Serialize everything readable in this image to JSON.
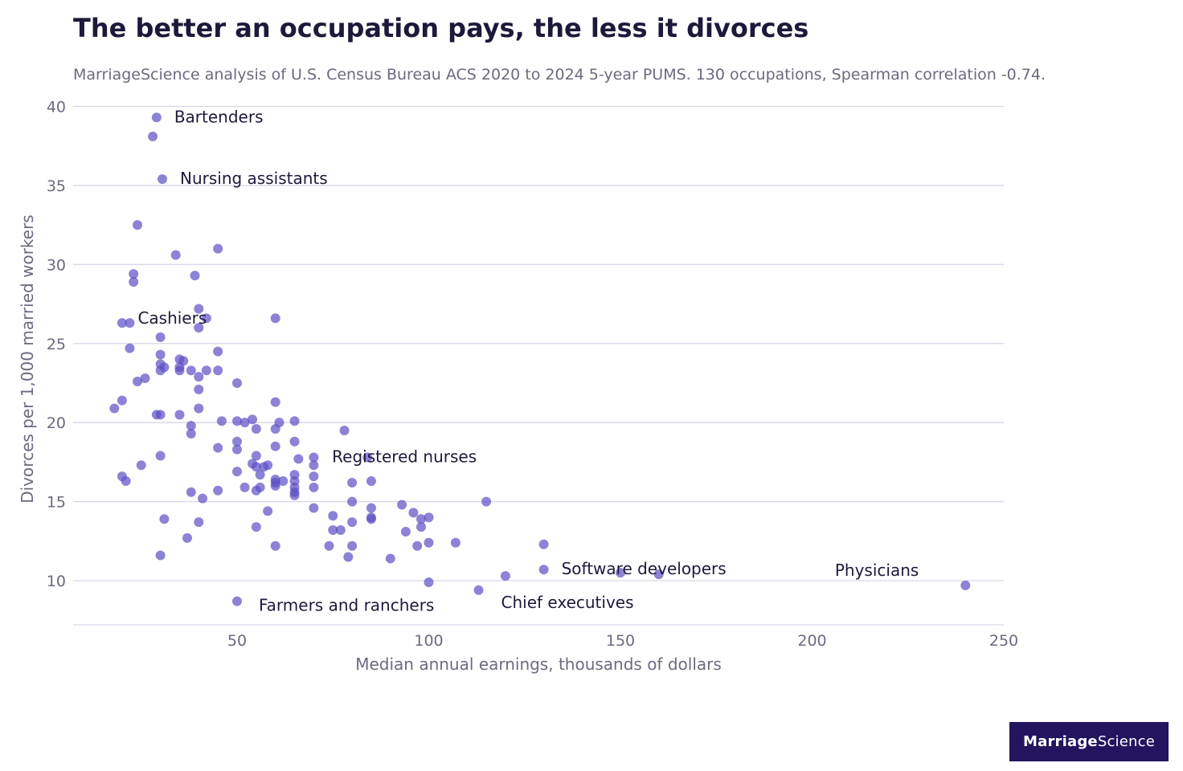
{
  "header": {
    "title": "The better an occupation pays, the less it divorces",
    "subtitle": "MarriageScience analysis of U.S. Census Bureau ACS 2020 to 2024 5-year PUMS. 130 occupations, Spearman correlation -0.74."
  },
  "logo": {
    "part1": "Marriage",
    "part2": "Science"
  },
  "colors": {
    "point": "#5b4fc4",
    "grid": "#d7d6ea",
    "text": "#1c1a3b",
    "muted": "#6b6a80",
    "brand": "#22145f"
  },
  "chart_data": {
    "type": "scatter",
    "title": "The better an occupation pays, the less it divorces",
    "xlabel": "Median annual earnings, thousands of dollars",
    "ylabel": "Divorces per 1,000 married workers",
    "xlim": [
      7,
      250
    ],
    "ylim": [
      7.2,
      40
    ],
    "xticks": [
      50,
      100,
      150,
      200,
      250
    ],
    "yticks": [
      10,
      15,
      20,
      25,
      30,
      35,
      40
    ],
    "grid": "horizontal",
    "annotations": [
      {
        "label": "Bartenders",
        "x": 29,
        "y": 39.3
      },
      {
        "label": "Nursing assistants",
        "x": 30.5,
        "y": 35.4
      },
      {
        "label": "Cashiers",
        "x": 22,
        "y": 26.3
      },
      {
        "label": "Registered nurses",
        "x": 84,
        "y": 17.8
      },
      {
        "label": "Software developers",
        "x": 130,
        "y": 10.7
      },
      {
        "label": "Physicians",
        "x": 240,
        "y": 9.7
      },
      {
        "label": "Chief executives",
        "x": 113,
        "y": 9.4
      },
      {
        "label": "Farmers and ranchers",
        "x": 50,
        "y": 8.7
      }
    ],
    "points": [
      [
        29,
        39.3
      ],
      [
        28,
        38.1
      ],
      [
        30.5,
        35.4
      ],
      [
        24,
        32.5
      ],
      [
        45,
        31.0
      ],
      [
        34,
        30.6
      ],
      [
        23,
        29.4
      ],
      [
        23,
        28.9
      ],
      [
        39,
        29.3
      ],
      [
        40,
        27.2
      ],
      [
        42,
        26.6
      ],
      [
        20,
        26.3
      ],
      [
        22,
        26.3
      ],
      [
        60,
        26.6
      ],
      [
        40,
        26.0
      ],
      [
        22,
        24.7
      ],
      [
        30,
        25.4
      ],
      [
        45,
        24.5
      ],
      [
        30,
        24.3
      ],
      [
        35,
        24.0
      ],
      [
        36,
        23.9
      ],
      [
        30,
        23.7
      ],
      [
        31,
        23.5
      ],
      [
        35,
        23.5
      ],
      [
        30,
        23.3
      ],
      [
        35,
        23.3
      ],
      [
        38,
        23.3
      ],
      [
        42,
        23.3
      ],
      [
        45,
        23.3
      ],
      [
        26,
        22.8
      ],
      [
        40,
        22.9
      ],
      [
        24,
        22.6
      ],
      [
        50,
        22.5
      ],
      [
        40,
        22.1
      ],
      [
        20,
        21.4
      ],
      [
        60,
        21.3
      ],
      [
        18,
        20.9
      ],
      [
        40,
        20.9
      ],
      [
        29,
        20.5
      ],
      [
        30,
        20.5
      ],
      [
        35,
        20.5
      ],
      [
        46,
        20.1
      ],
      [
        50,
        20.1
      ],
      [
        52,
        20.0
      ],
      [
        54,
        20.2
      ],
      [
        61,
        20.0
      ],
      [
        65,
        20.1
      ],
      [
        38,
        19.8
      ],
      [
        55,
        19.6
      ],
      [
        60,
        19.6
      ],
      [
        78,
        19.5
      ],
      [
        38,
        19.3
      ],
      [
        50,
        18.8
      ],
      [
        65,
        18.8
      ],
      [
        45,
        18.4
      ],
      [
        50,
        18.3
      ],
      [
        60,
        18.5
      ],
      [
        30,
        17.9
      ],
      [
        55,
        17.9
      ],
      [
        66,
        17.7
      ],
      [
        70,
        17.8
      ],
      [
        84,
        17.8
      ],
      [
        25,
        17.3
      ],
      [
        54,
        17.4
      ],
      [
        55,
        17.2
      ],
      [
        57,
        17.2
      ],
      [
        58,
        17.3
      ],
      [
        70,
        17.3
      ],
      [
        50,
        16.9
      ],
      [
        56,
        16.7
      ],
      [
        65,
        16.7
      ],
      [
        70,
        16.6
      ],
      [
        20,
        16.6
      ],
      [
        21,
        16.3
      ],
      [
        60,
        16.4
      ],
      [
        60,
        16.2
      ],
      [
        62,
        16.3
      ],
      [
        65,
        16.3
      ],
      [
        85,
        16.3
      ],
      [
        80,
        16.2
      ],
      [
        52,
        15.9
      ],
      [
        56,
        15.9
      ],
      [
        60,
        16.0
      ],
      [
        65,
        15.9
      ],
      [
        70,
        15.9
      ],
      [
        45,
        15.7
      ],
      [
        55,
        15.7
      ],
      [
        38,
        15.6
      ],
      [
        65,
        15.6
      ],
      [
        65,
        15.4
      ],
      [
        41,
        15.2
      ],
      [
        80,
        15.0
      ],
      [
        115,
        15.0
      ],
      [
        70,
        14.6
      ],
      [
        85,
        14.6
      ],
      [
        93,
        14.8
      ],
      [
        58,
        14.4
      ],
      [
        96,
        14.3
      ],
      [
        75,
        14.1
      ],
      [
        98,
        13.9
      ],
      [
        100,
        14.0
      ],
      [
        85,
        13.9
      ],
      [
        85,
        14.0
      ],
      [
        31,
        13.9
      ],
      [
        40,
        13.7
      ],
      [
        80,
        13.7
      ],
      [
        55,
        13.4
      ],
      [
        98,
        13.4
      ],
      [
        75,
        13.2
      ],
      [
        77,
        13.2
      ],
      [
        94,
        13.1
      ],
      [
        37,
        12.7
      ],
      [
        100,
        12.4
      ],
      [
        107,
        12.4
      ],
      [
        130,
        12.3
      ],
      [
        60,
        12.2
      ],
      [
        74,
        12.2
      ],
      [
        80,
        12.2
      ],
      [
        97,
        12.2
      ],
      [
        30,
        11.6
      ],
      [
        79,
        11.5
      ],
      [
        90,
        11.4
      ],
      [
        130,
        10.7
      ],
      [
        150,
        10.5
      ],
      [
        160,
        10.4
      ],
      [
        120,
        10.3
      ],
      [
        100,
        9.9
      ],
      [
        240,
        9.7
      ],
      [
        113,
        9.4
      ],
      [
        50,
        8.7
      ]
    ]
  }
}
